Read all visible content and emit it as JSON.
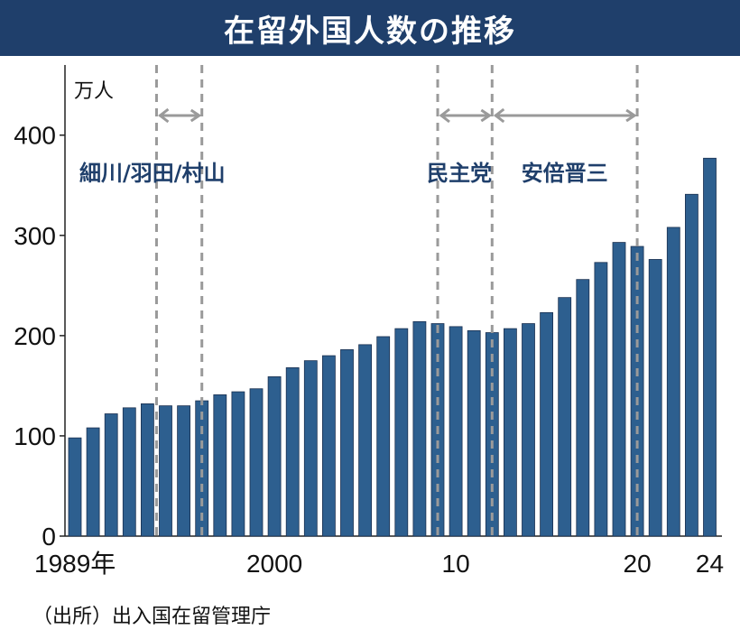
{
  "title": "在留外国人数の推移",
  "source": "（出所）出入国在留管理庁",
  "colors": {
    "title_bg": "#1f3f6b",
    "bar": "#2d5f8f",
    "annotation_text": "#1f3f6b",
    "guide": "#9a9a9a"
  },
  "chart_data": {
    "type": "bar",
    "unit_label": "万人",
    "x": [
      1989,
      1990,
      1991,
      1992,
      1993,
      1994,
      1995,
      1996,
      1997,
      1998,
      1999,
      2000,
      2001,
      2002,
      2003,
      2004,
      2005,
      2006,
      2007,
      2008,
      2009,
      2010,
      2011,
      2012,
      2013,
      2014,
      2015,
      2016,
      2017,
      2018,
      2019,
      2020,
      2021,
      2022,
      2023,
      2024
    ],
    "values": [
      98,
      108,
      122,
      128,
      132,
      130,
      130,
      135,
      141,
      144,
      147,
      159,
      168,
      175,
      180,
      186,
      191,
      199,
      207,
      214,
      212,
      209,
      205,
      203,
      207,
      212,
      223,
      238,
      256,
      273,
      293,
      289,
      276,
      308,
      341,
      377
    ],
    "x_tick_labels": [
      {
        "year": 1989,
        "label": "1989年"
      },
      {
        "year": 2000,
        "label": "2000"
      },
      {
        "year": 2010,
        "label": "10"
      },
      {
        "year": 2020,
        "label": "20"
      },
      {
        "year": 2024,
        "label": "24"
      }
    ],
    "y_ticks": [
      0,
      100,
      200,
      300,
      400
    ],
    "ylim": [
      0,
      470
    ],
    "annotations": [
      {
        "label": "細川/羽田/村山",
        "from_year": 1993.5,
        "to_year": 1996
      },
      {
        "label": "民主党",
        "from_year": 2009,
        "to_year": 2012
      },
      {
        "label": "安倍晋三",
        "from_year": 2012,
        "to_year": 2020
      }
    ]
  }
}
